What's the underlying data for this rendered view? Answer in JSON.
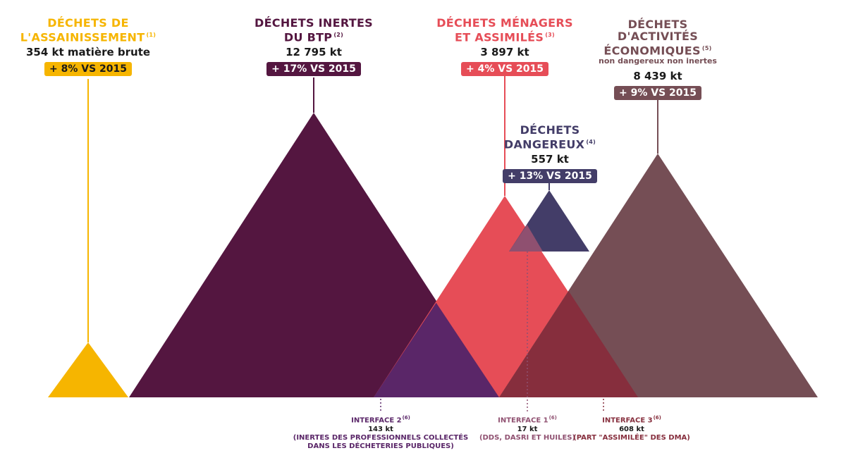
{
  "colors": {
    "assainissement": "#F6B500",
    "btp": "#541640",
    "menagers": "#E64D57",
    "dangereux": "#433D68",
    "activites": "#754E55",
    "interface2": "#5A2668",
    "interface1": "#8F5070",
    "interface3": "#862E3D"
  },
  "categories": [
    {
      "id": "assainissement",
      "title_lines": [
        "DÉCHETS DE",
        "L'ASSAINISSEMENT"
      ],
      "note": "(1)",
      "value": "354 kt matière brute",
      "change": "+ 8% VS 2015"
    },
    {
      "id": "btp",
      "title_lines": [
        "DÉCHETS INERTES",
        "DU BTP"
      ],
      "note": "(2)",
      "value": "12 795 kt",
      "change": "+ 17% VS 2015"
    },
    {
      "id": "menagers",
      "title_lines": [
        "DÉCHETS MÉNAGERS",
        "ET ASSIMILÉS"
      ],
      "note": "(3)",
      "value": "3 897 kt",
      "change": "+ 4% VS 2015"
    },
    {
      "id": "dangereux",
      "title_lines": [
        "DÉCHETS",
        "DANGEREUX"
      ],
      "note": "(4)",
      "value": "557 kt",
      "change": "+ 13% VS 2015"
    },
    {
      "id": "activites",
      "title_lines": [
        "DÉCHETS",
        "D'ACTIVITÉS",
        "ÉCONOMIQUES"
      ],
      "note": "(5)",
      "subtitle": "non dangereux non inertes",
      "value": "8 439 kt",
      "change": "+ 9% VS 2015"
    }
  ],
  "interfaces": [
    {
      "id": "interface2",
      "title": "INTERFACE 2",
      "note": "(6)",
      "value": "143 kt",
      "detail_lines": [
        "(INERTES DES PROFESSIONNELS COLLECTÉS",
        "DANS LES DÉCHETERIES PUBLIQUES)"
      ]
    },
    {
      "id": "interface1",
      "title": "INTERFACE 1",
      "note": "(6)",
      "value": "17 kt",
      "detail_lines": [
        "(DDS, DASRI ET HUILES)"
      ]
    },
    {
      "id": "interface3",
      "title": "INTERFACE 3",
      "note": "(6)",
      "value": "608 kt",
      "detail_lines": [
        "(PART \"ASSIMILÉE\" DES DMA)"
      ]
    }
  ]
}
